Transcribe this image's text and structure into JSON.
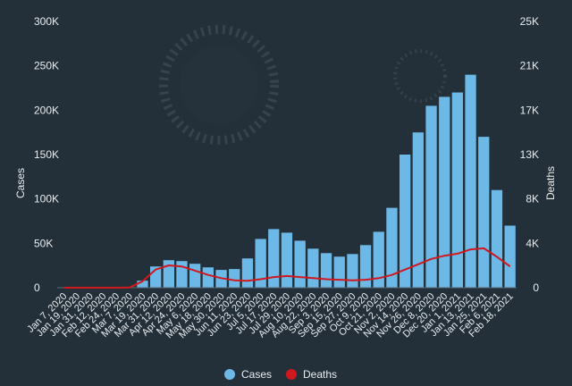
{
  "chart_data": {
    "type": "bar",
    "title": "",
    "xlabel": "",
    "ylabel": "Cases",
    "y2label": "Deaths",
    "ylim": [
      0,
      300000
    ],
    "y2lim": [
      0,
      25000
    ],
    "yticks": [
      "0",
      "50K",
      "100K",
      "150K",
      "200K",
      "250K",
      "300K"
    ],
    "y2ticks": [
      "0",
      "4K",
      "8K",
      "13K",
      "17K",
      "21K",
      "25K"
    ],
    "x_tick_labels": [
      "Jan 7, 2020",
      "Jan 19, 2020",
      "Jan 31, 2020",
      "Feb 12, 2020",
      "Feb 24, 2020",
      "Mar 7, 2020",
      "Mar 19, 2020",
      "Mar 31, 2020",
      "Apr 12, 2020",
      "Apr 24, 2020",
      "May 6, 2020",
      "May 18, 2020",
      "May 30, 2020",
      "Jun 11, 2020",
      "Jun 23, 2020",
      "Jul 5, 2020",
      "Jul 17, 2020",
      "Jul 29, 2020",
      "Aug 10, 2020",
      "Aug 22, 2020",
      "Sep 3, 2020",
      "Sep 15, 2020",
      "Sep 27, 2020",
      "Oct 9, 2020",
      "Oct 21, 2020",
      "Nov 2, 2020",
      "Nov 14, 2020",
      "Nov 26, 2020",
      "Dec 8, 2020",
      "Dec 20, 2020",
      "Jan 1, 2021",
      "Jan 13, 2021",
      "Jan 25, 2021",
      "Feb 6, 2021",
      "Feb 18, 2021"
    ],
    "series": [
      {
        "name": "Cases",
        "type": "bar",
        "axis": "left",
        "color": "#6cb8e6",
        "x": [
          "Jan 7, 2020",
          "Jan 19, 2020",
          "Jan 31, 2020",
          "Feb 12, 2020",
          "Feb 24, 2020",
          "Mar 7, 2020",
          "Mar 19, 2020",
          "Mar 31, 2020",
          "Apr 12, 2020",
          "Apr 24, 2020",
          "May 6, 2020",
          "May 18, 2020",
          "May 30, 2020",
          "Jun 11, 2020",
          "Jun 23, 2020",
          "Jul 5, 2020",
          "Jul 17, 2020",
          "Jul 29, 2020",
          "Aug 10, 2020",
          "Aug 22, 2020",
          "Sep 3, 2020",
          "Sep 15, 2020",
          "Sep 27, 2020",
          "Oct 9, 2020",
          "Oct 21, 2020",
          "Nov 2, 2020",
          "Nov 14, 2020",
          "Nov 26, 2020",
          "Dec 8, 2020",
          "Dec 20, 2020",
          "Jan 1, 2021",
          "Jan 13, 2021",
          "Jan 25, 2021",
          "Feb 6, 2021",
          "Feb 18, 2021"
        ],
        "values": [
          0,
          0,
          0,
          0,
          0,
          500,
          8000,
          24000,
          31000,
          30000,
          27000,
          23000,
          20000,
          21000,
          33000,
          55000,
          66000,
          62000,
          53000,
          44000,
          39000,
          35000,
          38000,
          48000,
          63000,
          90000,
          150000,
          175000,
          205000,
          215000,
          220000,
          240000,
          170000,
          110000,
          70000
        ]
      },
      {
        "name": "Deaths",
        "type": "line",
        "axis": "right",
        "color": "#d0181f",
        "x": [
          "Jan 7, 2020",
          "Jan 19, 2020",
          "Jan 31, 2020",
          "Feb 12, 2020",
          "Feb 24, 2020",
          "Mar 7, 2020",
          "Mar 19, 2020",
          "Mar 31, 2020",
          "Apr 12, 2020",
          "Apr 24, 2020",
          "May 6, 2020",
          "May 18, 2020",
          "May 30, 2020",
          "Jun 11, 2020",
          "Jun 23, 2020",
          "Jul 5, 2020",
          "Jul 17, 2020",
          "Jul 29, 2020",
          "Aug 10, 2020",
          "Aug 22, 2020",
          "Sep 3, 2020",
          "Sep 15, 2020",
          "Sep 27, 2020",
          "Oct 9, 2020",
          "Oct 21, 2020",
          "Nov 2, 2020",
          "Nov 14, 2020",
          "Nov 26, 2020",
          "Dec 8, 2020",
          "Dec 20, 2020",
          "Jan 1, 2021",
          "Jan 13, 2021",
          "Jan 25, 2021",
          "Feb 6, 2021",
          "Feb 18, 2021"
        ],
        "values": [
          0,
          0,
          0,
          0,
          0,
          20,
          600,
          1700,
          2100,
          2000,
          1600,
          1200,
          900,
          700,
          650,
          800,
          1000,
          1100,
          1000,
          900,
          800,
          750,
          700,
          750,
          900,
          1200,
          1700,
          2200,
          2700,
          3000,
          3200,
          3600,
          3700,
          2900,
          2000
        ]
      }
    ],
    "legend": {
      "placement": "bottom-center",
      "entries": [
        "Cases",
        "Deaths"
      ]
    },
    "grid": false
  }
}
